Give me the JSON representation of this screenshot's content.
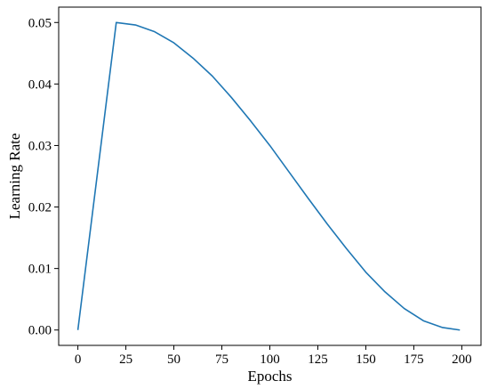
{
  "chart_data": {
    "type": "line",
    "title": "",
    "xlabel": "Epochs",
    "ylabel": "Learning Rate",
    "xlim": [
      -10,
      210
    ],
    "ylim": [
      -0.0025,
      0.0525
    ],
    "x_ticks": [
      0,
      25,
      50,
      75,
      100,
      125,
      150,
      175,
      200
    ],
    "x_tick_labels": [
      "0",
      "25",
      "50",
      "75",
      "100",
      "125",
      "150",
      "175",
      "200"
    ],
    "y_ticks": [
      0.0,
      0.01,
      0.02,
      0.03,
      0.04,
      0.05
    ],
    "y_tick_labels": [
      "0.00",
      "0.01",
      "0.02",
      "0.03",
      "0.04",
      "0.05"
    ],
    "grid": false,
    "legend": "none",
    "series": [
      {
        "color": "#1f77b4",
        "x": [
          0,
          20,
          30,
          40,
          50,
          60,
          70,
          80,
          90,
          100,
          110,
          120,
          130,
          140,
          150,
          160,
          170,
          180,
          190,
          199
        ],
        "values": [
          0.0,
          0.05,
          0.0496,
          0.0485,
          0.0467,
          0.0442,
          0.0413,
          0.0378,
          0.034,
          0.03,
          0.0257,
          0.0214,
          0.0172,
          0.0132,
          0.0094,
          0.0062,
          0.0035,
          0.0015,
          0.0004,
          0.0
        ]
      }
    ]
  }
}
